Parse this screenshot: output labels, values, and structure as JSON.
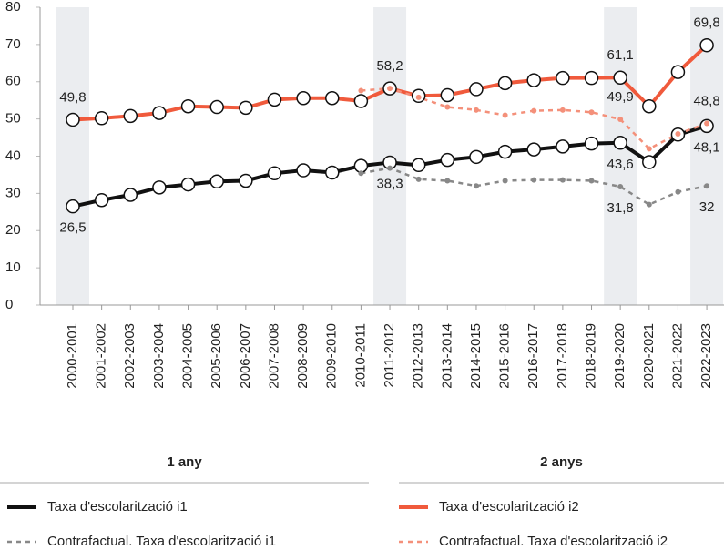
{
  "chart_data": {
    "type": "line",
    "categories": [
      "2000-2001",
      "2001-2002",
      "2002-2003",
      "2003-2004",
      "2004-2005",
      "2005-2006",
      "2006-2007",
      "2007-2008",
      "2008-2009",
      "2009-2010",
      "2010-2011",
      "2011-2012",
      "2012-2013",
      "2013-2014",
      "2014-2015",
      "2015-2016",
      "2016-2017",
      "2017-2018",
      "2018-2019",
      "2019-2020",
      "2020-2021",
      "2021-2022",
      "2022-2023"
    ],
    "ylim": [
      0,
      80
    ],
    "yticks": [
      0,
      10,
      20,
      30,
      40,
      50,
      60,
      70,
      80
    ],
    "legend_groups": [
      "1 any",
      "2 anys"
    ],
    "series": [
      {
        "name": "Taxa d'escolarització i1",
        "color": "#111111",
        "dashed": false,
        "markers": true,
        "label_position": "below",
        "values": [
          26.5,
          28.2,
          29.6,
          31.6,
          32.4,
          33.2,
          33.4,
          35.4,
          36.2,
          35.6,
          37.4,
          38.3,
          37.6,
          39.0,
          39.8,
          41.2,
          41.8,
          42.6,
          43.4,
          43.6,
          38.4,
          45.8,
          48.1
        ],
        "value_labels": [
          "26,5",
          null,
          null,
          null,
          null,
          null,
          null,
          null,
          null,
          null,
          null,
          "38,3",
          null,
          null,
          null,
          null,
          null,
          null,
          null,
          "43,6",
          null,
          null,
          "48,1"
        ]
      },
      {
        "name": "Contrafactual. Taxa d'escolarització i1",
        "color": "#888888",
        "dashed": true,
        "markers": false,
        "label_position": "below",
        "values": [
          null,
          null,
          null,
          null,
          null,
          null,
          null,
          null,
          null,
          null,
          35.4,
          36.8,
          33.8,
          33.4,
          32.0,
          33.4,
          33.6,
          33.6,
          33.4,
          31.8,
          27.0,
          30.4,
          32
        ],
        "value_labels": [
          null,
          null,
          null,
          null,
          null,
          null,
          null,
          null,
          null,
          null,
          null,
          null,
          null,
          null,
          null,
          null,
          null,
          null,
          null,
          "31,8",
          null,
          null,
          "32"
        ]
      },
      {
        "name": "Taxa d'escolarització i2",
        "color": "#f05a3c",
        "dashed": false,
        "markers": true,
        "label_position": "above",
        "values": [
          49.8,
          50.2,
          50.8,
          51.6,
          53.4,
          53.2,
          53.0,
          55.2,
          55.6,
          55.6,
          54.8,
          58.2,
          56.2,
          56.4,
          58.0,
          59.6,
          60.4,
          61.0,
          61.0,
          61.1,
          53.4,
          62.6,
          69.8
        ],
        "value_labels": [
          "49,8",
          null,
          null,
          null,
          null,
          null,
          null,
          null,
          null,
          null,
          null,
          "58,2",
          null,
          null,
          null,
          null,
          null,
          null,
          null,
          "61,1",
          null,
          null,
          "69,8"
        ]
      },
      {
        "name": "Contrafactual. Taxa d'escolarització i2",
        "color": "#f4907a",
        "dashed": true,
        "markers": false,
        "label_position": "above",
        "values": [
          null,
          null,
          null,
          null,
          null,
          null,
          null,
          null,
          null,
          null,
          57.6,
          58.2,
          55.8,
          53.2,
          52.4,
          51.0,
          52.2,
          52.4,
          51.8,
          49.9,
          42.0,
          46.0,
          48.8
        ],
        "value_labels": [
          null,
          null,
          null,
          null,
          null,
          null,
          null,
          null,
          null,
          null,
          null,
          null,
          null,
          null,
          null,
          null,
          null,
          null,
          null,
          "49,9",
          null,
          null,
          "48,8"
        ]
      }
    ]
  }
}
